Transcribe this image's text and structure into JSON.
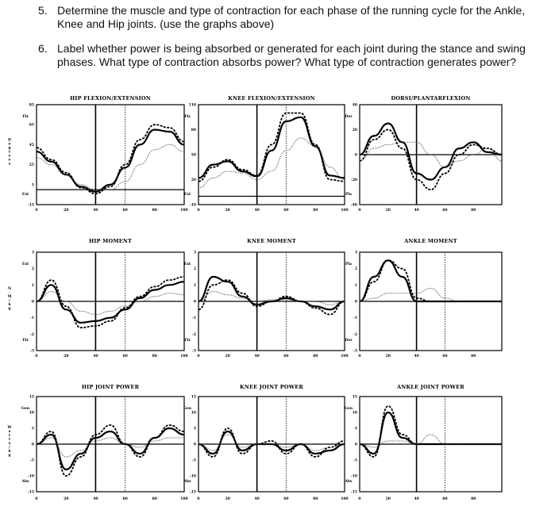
{
  "questions": [
    {
      "number": "5.",
      "text": "Determine the muscle and type of contraction for each phase of the running cycle for the Ankle, Knee and Hip joints. (use the graphs above)"
    },
    {
      "number": "6.",
      "text": "Label whether power is being absorbed or generated for each joint during the stance and swing phases. What type of contraction absorbs power? What type of contraction generates power?"
    }
  ],
  "chart_data": [
    {
      "type": "line",
      "title": "HIP FLEXION/EXTENSION",
      "ylim": [
        -15,
        85
      ],
      "yticks": [
        85,
        65,
        45,
        25,
        5,
        -15
      ],
      "side_labels": {
        "top": "Flx",
        "bottom": "Ext"
      },
      "y_letters": "Degrees",
      "x": [
        0,
        10,
        20,
        30,
        40,
        50,
        60,
        70,
        80,
        90,
        100
      ],
      "xticks": [
        20,
        40,
        60,
        80,
        100
      ],
      "marker_lines": {
        "solid": 40,
        "dotted": 60
      },
      "zero_line": 0,
      "series": [
        {
          "style": "solid",
          "values": [
            38,
            28,
            15,
            3,
            -2,
            5,
            22,
            45,
            60,
            58,
            45
          ]
        },
        {
          "style": "dashed",
          "values": [
            42,
            30,
            17,
            2,
            -4,
            3,
            25,
            50,
            65,
            62,
            48
          ]
        },
        {
          "style": "dotted",
          "values": [
            32,
            25,
            15,
            5,
            0,
            0,
            8,
            25,
            40,
            45,
            38
          ]
        }
      ]
    },
    {
      "type": "line",
      "title": "KNEE FLEXION/EXTENSION",
      "ylim": [
        -10,
        110
      ],
      "yticks": [
        110,
        80,
        50,
        20,
        -10
      ],
      "side_labels": {
        "top": "Flx",
        "bottom": "Ext"
      },
      "x": [
        0,
        10,
        20,
        30,
        40,
        50,
        60,
        70,
        80,
        90,
        100
      ],
      "xticks": [
        20,
        40,
        60,
        80,
        100
      ],
      "marker_lines": {
        "solid": 40,
        "dotted": 60
      },
      "zero_line": 0,
      "series": [
        {
          "style": "solid",
          "values": [
            22,
            38,
            42,
            30,
            24,
            55,
            90,
            95,
            60,
            25,
            22
          ]
        },
        {
          "style": "dashed",
          "values": [
            18,
            35,
            44,
            32,
            25,
            62,
            100,
            100,
            62,
            20,
            18
          ]
        },
        {
          "style": "dotted",
          "values": [
            10,
            22,
            30,
            28,
            20,
            30,
            55,
            70,
            60,
            35,
            20
          ]
        }
      ]
    },
    {
      "type": "line",
      "title": "DORSI/PLANTARFLEXION",
      "ylim": [
        -40,
        40
      ],
      "yticks": [
        40,
        20,
        0,
        -20,
        -40
      ],
      "side_labels": {
        "top": "Dor",
        "bottom": "Pla"
      },
      "x": [
        0,
        10,
        20,
        30,
        40,
        50,
        60,
        70,
        80,
        90,
        100
      ],
      "xticks": [
        20,
        40,
        60,
        80
      ],
      "marker_lines": {
        "solid": 40
      },
      "zero_line": 0,
      "series": [
        {
          "style": "solid",
          "values": [
            0,
            15,
            25,
            10,
            -15,
            -20,
            -10,
            5,
            10,
            2,
            0
          ]
        },
        {
          "style": "dashed",
          "values": [
            -5,
            12,
            20,
            5,
            -20,
            -28,
            -15,
            0,
            8,
            5,
            0
          ]
        },
        {
          "style": "dotted",
          "values": [
            -5,
            5,
            8,
            10,
            10,
            0,
            -10,
            -5,
            0,
            5,
            -5
          ]
        }
      ]
    },
    {
      "type": "line",
      "title": "HIP MOMENT",
      "ylim": [
        -3,
        3
      ],
      "yticks": [
        3,
        2,
        1,
        0,
        -1,
        -2,
        -3
      ],
      "side_labels": {
        "top": "Ext",
        "bottom": "Flx"
      },
      "y_letters": "N·M/kg",
      "x": [
        0,
        10,
        20,
        30,
        40,
        50,
        60,
        70,
        80,
        90,
        100
      ],
      "xticks": [
        20,
        40,
        60,
        80,
        100
      ],
      "marker_lines": {
        "solid": 40,
        "dotted": 60
      },
      "zero_line": 0,
      "series": [
        {
          "style": "solid",
          "values": [
            0,
            1,
            -0.5,
            -1.3,
            -1.2,
            -1,
            -0.5,
            0.2,
            0.7,
            1,
            1.2
          ]
        },
        {
          "style": "dashed",
          "values": [
            0,
            1.3,
            -0.3,
            -1.6,
            -1.5,
            -1.2,
            -0.4,
            0.3,
            0.9,
            1.3,
            1.5
          ]
        },
        {
          "style": "dotted",
          "values": [
            0,
            0.6,
            0,
            -0.6,
            -0.8,
            -0.6,
            -0.3,
            0,
            0.3,
            0.5,
            0.4
          ]
        }
      ]
    },
    {
      "type": "line",
      "title": "KNEE MOMENT",
      "ylim": [
        -3,
        3
      ],
      "yticks": [
        3,
        2,
        1,
        0,
        -1,
        -2,
        -3
      ],
      "side_labels": {
        "top": "Ext",
        "bottom": "Flx"
      },
      "x": [
        0,
        10,
        20,
        30,
        40,
        50,
        60,
        70,
        80,
        90,
        100
      ],
      "xticks": [
        20,
        40,
        60,
        80,
        100
      ],
      "marker_lines": {
        "solid": 40,
        "dotted": 60
      },
      "zero_line": 0,
      "series": [
        {
          "style": "solid",
          "values": [
            0,
            1.5,
            1.2,
            0.3,
            -0.2,
            0,
            0.2,
            0,
            -0.3,
            -0.5,
            0
          ]
        },
        {
          "style": "dashed",
          "values": [
            -0.5,
            1.0,
            1.3,
            0.5,
            -0.3,
            0,
            0.3,
            0,
            -0.4,
            -0.8,
            0
          ]
        },
        {
          "style": "dotted",
          "values": [
            0,
            0.6,
            0.4,
            0.2,
            0,
            0.1,
            0.1,
            0,
            0,
            -0.2,
            0
          ]
        }
      ]
    },
    {
      "type": "line",
      "title": "ANKLE MOMENT",
      "ylim": [
        -3,
        3
      ],
      "yticks": [
        3,
        2,
        1,
        0,
        -1,
        -2,
        -3
      ],
      "side_labels": {
        "top": "Pla",
        "bottom": "Dor"
      },
      "x": [
        0,
        10,
        20,
        30,
        40,
        50,
        60,
        70,
        80,
        90,
        100
      ],
      "xticks": [
        20,
        40,
        60,
        80
      ],
      "marker_lines": {
        "solid": 40,
        "dotted": 60
      },
      "zero_line": 0,
      "series": [
        {
          "style": "solid",
          "values": [
            0,
            1.5,
            2.5,
            1.5,
            0,
            0,
            0,
            0,
            0,
            0,
            0
          ]
        },
        {
          "style": "dashed",
          "values": [
            0,
            1.2,
            2.5,
            2.0,
            0.2,
            0,
            0,
            0,
            0,
            0,
            0
          ]
        },
        {
          "style": "dotted",
          "values": [
            0,
            0.2,
            0.5,
            0.5,
            0.5,
            0.8,
            0.2,
            0,
            0,
            0,
            0
          ]
        }
      ]
    },
    {
      "type": "line",
      "title": "HIP JOINT POWER",
      "ylim": [
        -15,
        15
      ],
      "yticks": [
        15,
        10,
        5,
        0,
        -5,
        -10,
        -15
      ],
      "side_labels": {
        "top": "Gen",
        "bottom": "Abs"
      },
      "y_letters": "Watts/kg",
      "x": [
        0,
        10,
        20,
        30,
        40,
        50,
        60,
        70,
        80,
        90,
        100
      ],
      "xticks": [
        20,
        40,
        60,
        80,
        100
      ],
      "marker_lines": {
        "solid": 40,
        "dotted": 60
      },
      "zero_line": 0,
      "series": [
        {
          "style": "solid",
          "values": [
            0,
            3,
            -8,
            -3,
            2,
            4,
            0,
            -3,
            2,
            5,
            3
          ]
        },
        {
          "style": "dashed",
          "values": [
            0,
            4,
            -10,
            -4,
            3,
            6,
            0,
            -4,
            2,
            6,
            4
          ]
        },
        {
          "style": "dotted",
          "values": [
            0,
            2,
            -4,
            -2,
            1,
            2,
            0,
            -1,
            1,
            2,
            2
          ]
        }
      ]
    },
    {
      "type": "line",
      "title": "KNEE JOINT POWER",
      "ylim": [
        -15,
        15
      ],
      "yticks": [
        15,
        10,
        5,
        0,
        -5,
        -10,
        -15
      ],
      "side_labels": {
        "top": "Gen",
        "bottom": "Abs"
      },
      "x": [
        0,
        10,
        20,
        30,
        40,
        50,
        60,
        70,
        80,
        90,
        100
      ],
      "xticks": [
        20,
        40,
        60,
        80,
        100
      ],
      "marker_lines": {
        "solid": 40,
        "dotted": 60
      },
      "zero_line": 0,
      "series": [
        {
          "style": "solid",
          "values": [
            0,
            -3,
            4,
            -2,
            0,
            0,
            -2,
            0,
            -3,
            -2,
            0
          ]
        },
        {
          "style": "dashed",
          "values": [
            0,
            -4,
            5,
            -3,
            0,
            1,
            -3,
            0,
            -4,
            -1,
            1
          ]
        },
        {
          "style": "dotted",
          "values": [
            0,
            -2,
            3,
            -1,
            0,
            0,
            -1,
            0,
            -2,
            -1,
            0
          ]
        }
      ]
    },
    {
      "type": "line",
      "title": "ANKLE JOINT POWER",
      "ylim": [
        -15,
        15
      ],
      "yticks": [
        15,
        10,
        5,
        0,
        -5,
        -10,
        -15
      ],
      "side_labels": {
        "top": "Gen",
        "bottom": "Abs"
      },
      "x": [
        0,
        10,
        20,
        30,
        40,
        50,
        60,
        70,
        80,
        90,
        100
      ],
      "xticks": [
        20,
        40,
        60,
        80
      ],
      "marker_lines": {
        "solid": 40,
        "dotted": 60
      },
      "zero_line": 0,
      "series": [
        {
          "style": "solid",
          "values": [
            0,
            -3,
            10,
            2,
            0,
            0,
            0,
            0,
            0,
            0,
            0
          ]
        },
        {
          "style": "dashed",
          "values": [
            0,
            -4,
            12,
            3,
            0,
            0,
            0,
            0,
            0,
            0,
            0
          ]
        },
        {
          "style": "dotted",
          "values": [
            0,
            -1,
            1,
            1,
            0,
            3,
            0,
            0,
            0,
            0,
            0
          ]
        }
      ]
    }
  ]
}
